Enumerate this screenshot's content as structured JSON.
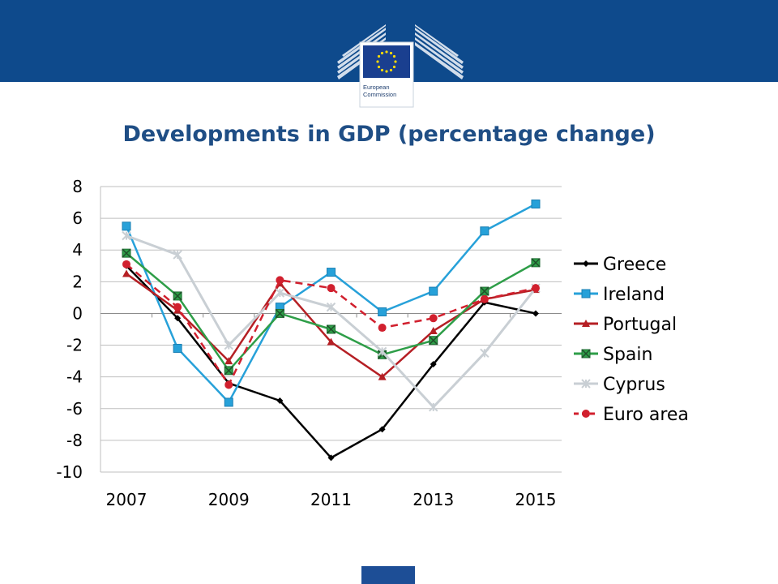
{
  "header": {
    "logo": {
      "line1": "European",
      "line2": "Commission"
    }
  },
  "chart_data": {
    "type": "line",
    "title": "Developments in GDP (percentage change)",
    "x": [
      2007,
      2008,
      2009,
      2010,
      2011,
      2012,
      2013,
      2014,
      2015
    ],
    "x_tick_labels": [
      "2007",
      "2009",
      "2011",
      "2013",
      "2015"
    ],
    "y_tick_labels": [
      "8",
      "6",
      "4",
      "2",
      "0",
      "-2",
      "-4",
      "-6",
      "-8",
      "-10"
    ],
    "ylim": [
      -10,
      8
    ],
    "grid": "horizontal",
    "legend_position": "right",
    "series": [
      {
        "name": "Greece",
        "color": "#000000",
        "marker": "diamond",
        "dash": "solid",
        "values": [
          3.0,
          -0.3,
          -4.4,
          -5.5,
          -9.1,
          -7.3,
          -3.2,
          0.7,
          0.0
        ]
      },
      {
        "name": "Ireland",
        "color": "#27a1d9",
        "marker": "square",
        "dash": "solid",
        "values": [
          5.5,
          -2.2,
          -5.6,
          0.4,
          2.6,
          0.1,
          1.4,
          5.2,
          6.9
        ]
      },
      {
        "name": "Portugal",
        "color": "#b51f24",
        "marker": "triangle",
        "dash": "solid",
        "values": [
          2.5,
          0.2,
          -3.0,
          1.9,
          -1.8,
          -4.0,
          -1.1,
          0.9,
          1.5
        ]
      },
      {
        "name": "Spain",
        "color": "#2e9e48",
        "marker": "x-square",
        "dash": "solid",
        "values": [
          3.8,
          1.1,
          -3.6,
          0.0,
          -1.0,
          -2.6,
          -1.7,
          1.4,
          3.2
        ]
      },
      {
        "name": "Cyprus",
        "color": "#c9cfd4",
        "marker": "star",
        "dash": "solid",
        "values": [
          4.9,
          3.7,
          -2.0,
          1.3,
          0.4,
          -2.4,
          -5.9,
          -2.5,
          1.6
        ]
      },
      {
        "name": "Euro area",
        "color": "#d1202e",
        "marker": "circle",
        "dash": "dashed",
        "values": [
          3.1,
          0.4,
          -4.5,
          2.1,
          1.6,
          -0.9,
          -0.3,
          0.9,
          1.6
        ]
      }
    ]
  }
}
